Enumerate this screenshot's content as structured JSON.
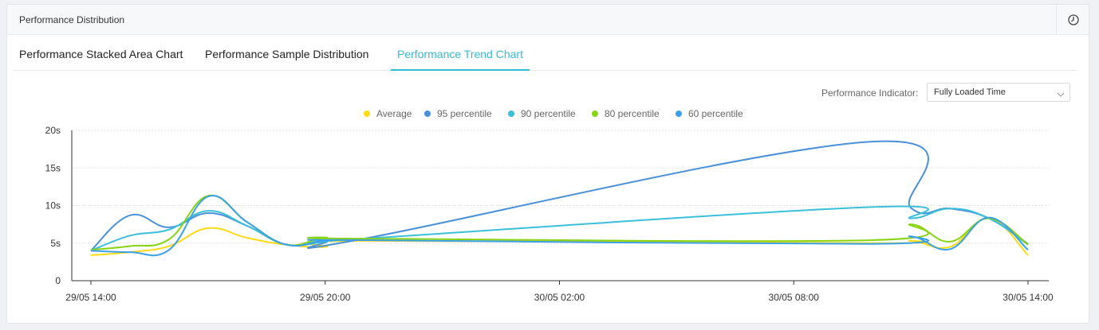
{
  "header": {
    "title": "Performance Distribution",
    "icon": "clock-icon"
  },
  "tabs": [
    {
      "label": "Performance Stacked Area Chart",
      "active": false
    },
    {
      "label": "Performance Sample Distribution",
      "active": false
    },
    {
      "label": "Performance Trend Chart",
      "active": true
    }
  ],
  "controls": {
    "indicator_label": "Performance Indicator:",
    "indicator_value": "Fully Loaded Time"
  },
  "colors": {
    "accent": "#34b9d6"
  },
  "chart_data": {
    "type": "line",
    "x": [
      "29/05 14:00",
      "29/05 15:00",
      "29/05 16:00",
      "29/05 17:00",
      "29/05 18:00",
      "29/05 19:00",
      "29/05 20:00",
      "29/05 21:00",
      "30/05 10:00",
      "30/05 11:00",
      "30/05 12:00",
      "30/05 13:00",
      "30/05 14:00"
    ],
    "xticks": [
      "29/05 14:00",
      "29/05 20:00",
      "30/05 02:00",
      "30/05 08:00",
      "30/05 14:00"
    ],
    "yticks": [
      "0",
      "5s",
      "10s",
      "15s",
      "20s"
    ],
    "ylim": [
      0,
      20
    ],
    "yunit": "s",
    "grid": true,
    "legend": "top-center",
    "series": [
      {
        "name": "Average",
        "color": "#fadb14",
        "values": [
          3.4,
          3.8,
          4.6,
          7.0,
          5.7,
          4.8,
          4.5,
          5.3,
          5.0,
          5.3,
          4.5,
          8.3,
          3.4
        ]
      },
      {
        "name": "95 percentile",
        "color": "#4a90d9",
        "values": [
          4.0,
          8.7,
          7.1,
          9.0,
          7.3,
          4.8,
          5.2,
          5.6,
          18.5,
          9.7,
          9.6,
          8.3,
          4.9
        ]
      },
      {
        "name": "90 percentile",
        "color": "#3bbfd8",
        "values": [
          4.0,
          6.0,
          6.8,
          9.3,
          7.3,
          4.8,
          5.2,
          5.6,
          9.8,
          8.3,
          9.6,
          8.3,
          4.8
        ]
      },
      {
        "name": "80 percentile",
        "color": "#88d413",
        "values": [
          4.1,
          4.6,
          5.5,
          11.3,
          7.8,
          4.8,
          5.7,
          5.6,
          5.4,
          7.5,
          5.2,
          8.3,
          4.8
        ]
      },
      {
        "name": "60 percentile",
        "color": "#3aa0e8",
        "values": [
          4.0,
          3.8,
          4.1,
          11.2,
          7.8,
          4.8,
          5.3,
          5.4,
          4.9,
          5.9,
          4.2,
          8.4,
          4.1
        ]
      }
    ]
  }
}
